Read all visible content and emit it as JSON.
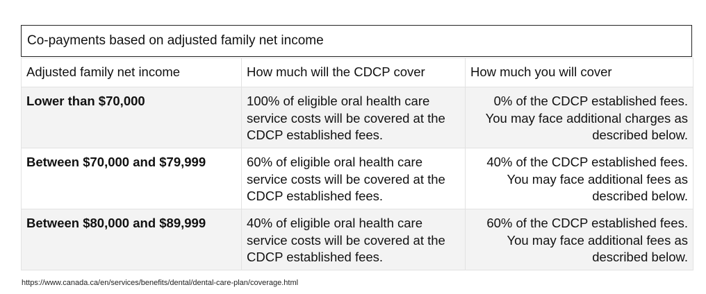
{
  "caption": "Co-payments based on adjusted family net income",
  "headers": [
    "Adjusted family net income",
    "How much will the CDCP cover",
    "How much you will cover"
  ],
  "rows": [
    {
      "income": "Lower than $70,000",
      "cdcp_cover": "100% of eligible oral health care service costs will be covered at the CDCP established fees.",
      "you_cover": "0% of the CDCP established fees. You may face additional charges as described below."
    },
    {
      "income": "Between $70,000 and $79,999",
      "cdcp_cover": "60% of eligible oral health care service costs will be covered at the CDCP established fees.",
      "you_cover": "40% of the CDCP established fees. You may face additional fees as described below."
    },
    {
      "income": "Between $80,000 and $89,999",
      "cdcp_cover": "40% of eligible oral health care service costs will be covered at the CDCP established fees.",
      "you_cover": "60% of the CDCP established fees. You may face additional fees as described below."
    }
  ],
  "source_url": "https://www.canada.ca/en/services/benefits/dental/dental-care-plan/coverage.html"
}
